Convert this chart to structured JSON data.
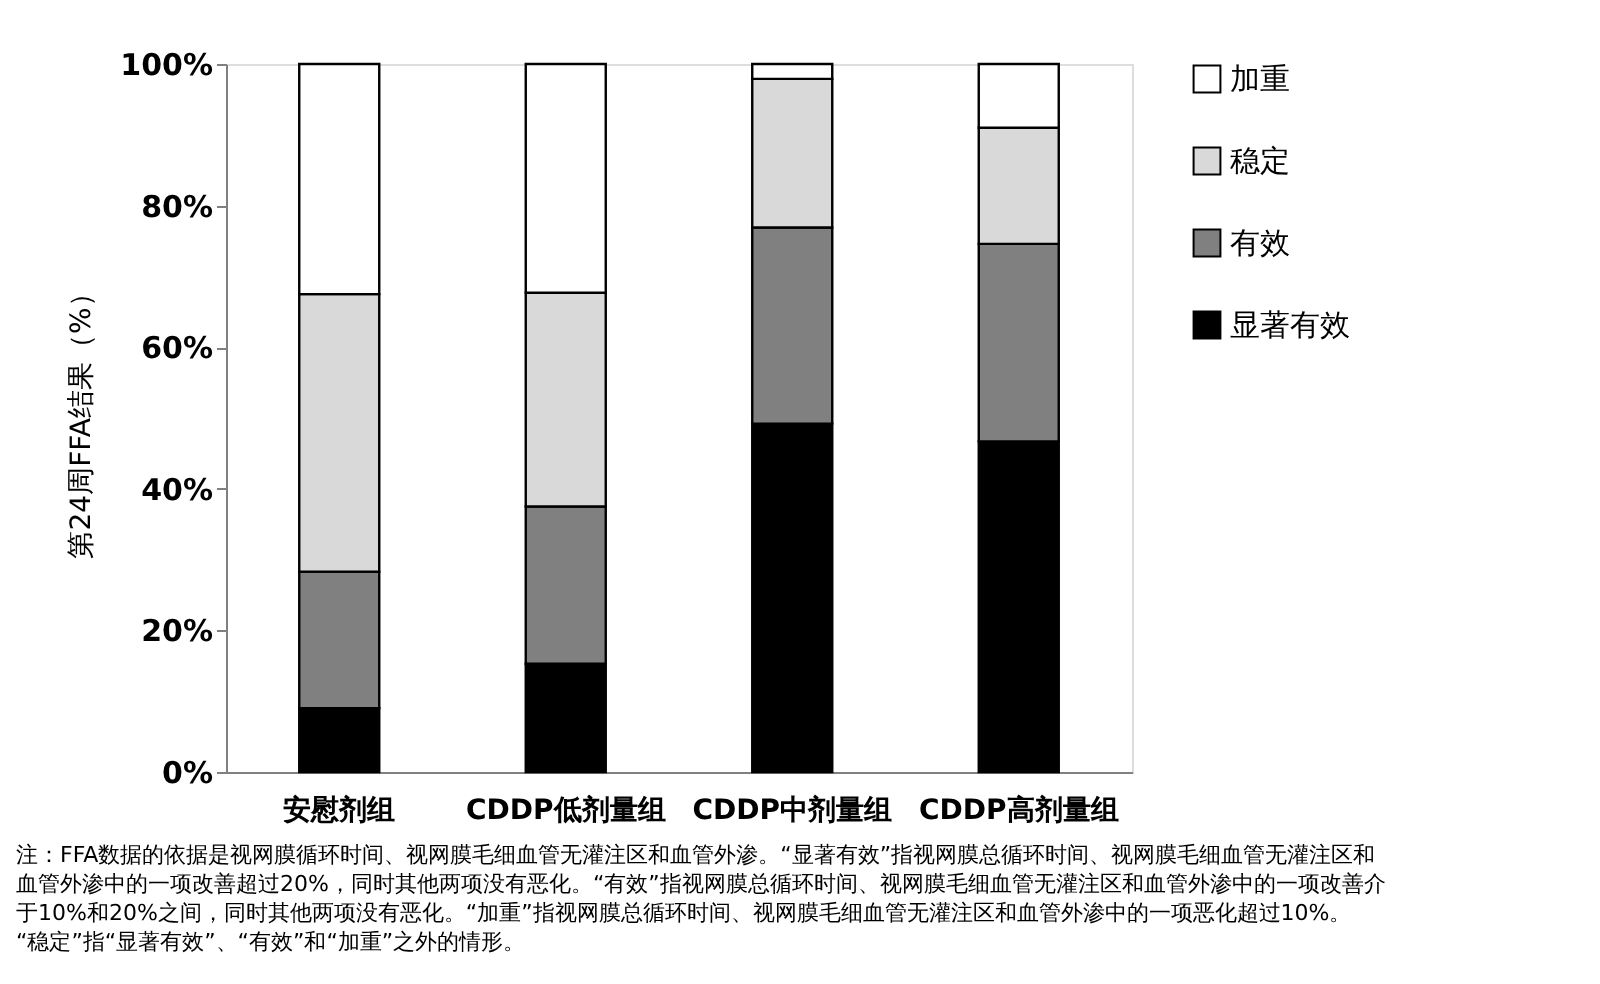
{
  "chart_data": {
    "type": "bar",
    "stacked": true,
    "ylabel": "第24周FFA结果（%）",
    "categories": [
      "安慰剂组",
      "CDDP低剂量组",
      "CDDP中剂量组",
      "CDDP高剂量组"
    ],
    "series": [
      {
        "name": "显著有效",
        "color": "#000000",
        "values": [
          9.0,
          15.3,
          49.2,
          46.7
        ]
      },
      {
        "name": "有效",
        "color": "#808080",
        "values": [
          19.3,
          22.2,
          27.7,
          27.9
        ]
      },
      {
        "name": "稳定",
        "color": "#d9d9d9",
        "values": [
          39.2,
          30.2,
          21.0,
          16.4
        ]
      },
      {
        "name": "加重",
        "color": "#ffffff",
        "values": [
          32.5,
          32.3,
          2.1,
          9.0
        ]
      }
    ],
    "ylim": [
      0,
      100
    ],
    "yticks": [
      {
        "value": 0,
        "label": "0%"
      },
      {
        "value": 20,
        "label": "20%"
      },
      {
        "value": 40,
        "label": "40%"
      },
      {
        "value": 60,
        "label": "60%"
      },
      {
        "value": 80,
        "label": "80%"
      },
      {
        "value": 100,
        "label": "100%"
      }
    ],
    "grid": false,
    "legend": "right",
    "annotations": [
      "注：FFA数据的依据是视网膜循环时间、视网膜毛细血管无灌注区和血管外渗。“显著有效”指视网膜总循环时间、视网膜毛细血管无灌注区和",
      "血管外渗中的一项改善超过20%，同时其他两项没有恶化。“有效”指视网膜总循环时间、视网膜毛细血管无灌注区和血管外渗中的一项改善介",
      "于10%和20%之间，同时其他两项没有恶化。“加重”指视网膜总循环时间、视网膜毛细血管无灌注区和血管外渗中的一项恶化超过10%。",
      "“稳定”指“显著有效”、“有效”和“加重”之外的情形。"
    ]
  }
}
